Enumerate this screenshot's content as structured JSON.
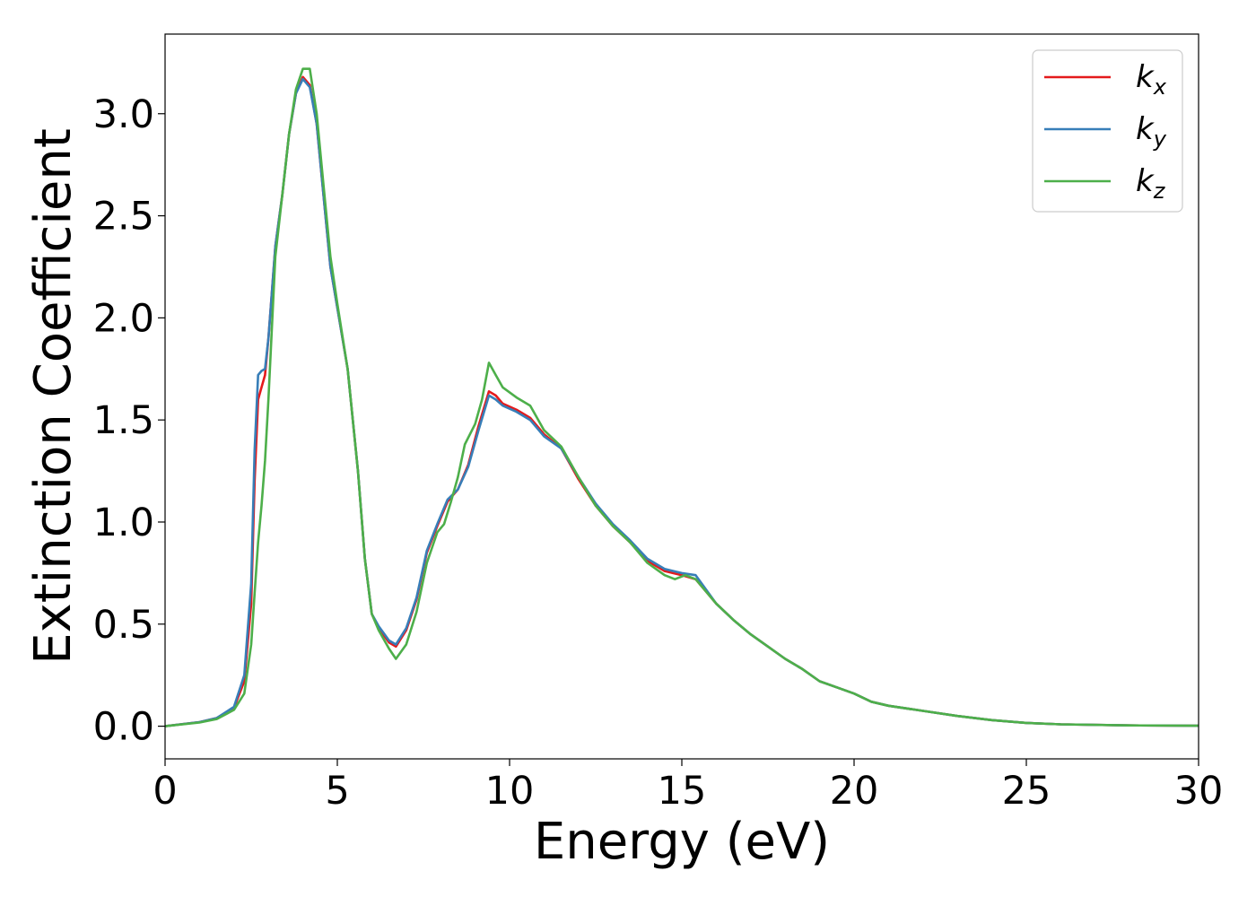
{
  "chart_data": {
    "type": "line",
    "xlabel": "Energy (eV)",
    "ylabel": "Extinction Coefficient",
    "xlim": [
      0,
      30
    ],
    "ylim": [
      -0.16,
      3.39
    ],
    "xticks": [
      0,
      5,
      10,
      15,
      20,
      25,
      30
    ],
    "xtick_labels": [
      "0",
      "5",
      "10",
      "15",
      "20",
      "25",
      "30"
    ],
    "yticks": [
      0.0,
      0.5,
      1.0,
      1.5,
      2.0,
      2.5,
      3.0
    ],
    "ytick_labels": [
      "0.0",
      "0.5",
      "1.0",
      "1.5",
      "2.0",
      "2.5",
      "3.0"
    ],
    "grid": false,
    "legend_position": "top-right",
    "series": [
      {
        "name": "k",
        "subscript": "x",
        "color": "#e41a1c",
        "points": [
          [
            0,
            0
          ],
          [
            1,
            0.02
          ],
          [
            1.5,
            0.04
          ],
          [
            2,
            0.09
          ],
          [
            2.3,
            0.22
          ],
          [
            2.5,
            0.6
          ],
          [
            2.6,
            1.2
          ],
          [
            2.7,
            1.6
          ],
          [
            2.8,
            1.66
          ],
          [
            2.9,
            1.72
          ],
          [
            3.0,
            1.9
          ],
          [
            3.2,
            2.35
          ],
          [
            3.4,
            2.6
          ],
          [
            3.6,
            2.9
          ],
          [
            3.8,
            3.1
          ],
          [
            4.0,
            3.18
          ],
          [
            4.2,
            3.14
          ],
          [
            4.4,
            2.95
          ],
          [
            4.6,
            2.6
          ],
          [
            4.8,
            2.25
          ],
          [
            5.0,
            2.05
          ],
          [
            5.3,
            1.75
          ],
          [
            5.6,
            1.25
          ],
          [
            5.8,
            0.82
          ],
          [
            6.0,
            0.55
          ],
          [
            6.2,
            0.48
          ],
          [
            6.5,
            0.41
          ],
          [
            6.7,
            0.39
          ],
          [
            7.0,
            0.47
          ],
          [
            7.3,
            0.62
          ],
          [
            7.6,
            0.85
          ],
          [
            7.9,
            0.98
          ],
          [
            8.2,
            1.1
          ],
          [
            8.5,
            1.16
          ],
          [
            8.8,
            1.28
          ],
          [
            9.1,
            1.47
          ],
          [
            9.4,
            1.64
          ],
          [
            9.6,
            1.62
          ],
          [
            9.8,
            1.58
          ],
          [
            10.2,
            1.55
          ],
          [
            10.6,
            1.51
          ],
          [
            11.0,
            1.43
          ],
          [
            11.5,
            1.36
          ],
          [
            12.0,
            1.21
          ],
          [
            12.5,
            1.08
          ],
          [
            13.0,
            0.98
          ],
          [
            13.5,
            0.9
          ],
          [
            14.0,
            0.81
          ],
          [
            14.5,
            0.76
          ],
          [
            15.0,
            0.74
          ],
          [
            15.4,
            0.72
          ],
          [
            16.0,
            0.6
          ],
          [
            16.5,
            0.52
          ],
          [
            17.0,
            0.45
          ],
          [
            17.5,
            0.39
          ],
          [
            18.0,
            0.33
          ],
          [
            18.5,
            0.28
          ],
          [
            19.0,
            0.22
          ],
          [
            19.5,
            0.19
          ],
          [
            20.0,
            0.16
          ],
          [
            20.5,
            0.12
          ],
          [
            21.0,
            0.1
          ],
          [
            22,
            0.075
          ],
          [
            23,
            0.05
          ],
          [
            24,
            0.03
          ],
          [
            25,
            0.016
          ],
          [
            26,
            0.009
          ],
          [
            28,
            0.004
          ],
          [
            30,
            0.002
          ]
        ]
      },
      {
        "name": "k",
        "subscript": "y",
        "color": "#377eb8",
        "points": [
          [
            0,
            0
          ],
          [
            1,
            0.02
          ],
          [
            1.5,
            0.04
          ],
          [
            2,
            0.095
          ],
          [
            2.3,
            0.25
          ],
          [
            2.5,
            0.7
          ],
          [
            2.6,
            1.35
          ],
          [
            2.7,
            1.72
          ],
          [
            2.8,
            1.74
          ],
          [
            2.9,
            1.75
          ],
          [
            3.0,
            1.9
          ],
          [
            3.2,
            2.35
          ],
          [
            3.4,
            2.6
          ],
          [
            3.6,
            2.9
          ],
          [
            3.8,
            3.1
          ],
          [
            4.0,
            3.17
          ],
          [
            4.2,
            3.13
          ],
          [
            4.4,
            2.95
          ],
          [
            4.6,
            2.6
          ],
          [
            4.8,
            2.25
          ],
          [
            5.0,
            2.05
          ],
          [
            5.3,
            1.75
          ],
          [
            5.6,
            1.25
          ],
          [
            5.8,
            0.82
          ],
          [
            6.0,
            0.55
          ],
          [
            6.2,
            0.49
          ],
          [
            6.5,
            0.42
          ],
          [
            6.7,
            0.4
          ],
          [
            7.0,
            0.48
          ],
          [
            7.3,
            0.63
          ],
          [
            7.6,
            0.86
          ],
          [
            7.9,
            0.99
          ],
          [
            8.2,
            1.11
          ],
          [
            8.5,
            1.16
          ],
          [
            8.8,
            1.27
          ],
          [
            9.1,
            1.45
          ],
          [
            9.4,
            1.62
          ],
          [
            9.6,
            1.6
          ],
          [
            9.8,
            1.57
          ],
          [
            10.2,
            1.54
          ],
          [
            10.6,
            1.5
          ],
          [
            11.0,
            1.42
          ],
          [
            11.5,
            1.36
          ],
          [
            12.0,
            1.22
          ],
          [
            12.5,
            1.09
          ],
          [
            13.0,
            0.99
          ],
          [
            13.5,
            0.91
          ],
          [
            14.0,
            0.82
          ],
          [
            14.5,
            0.77
          ],
          [
            15.0,
            0.75
          ],
          [
            15.4,
            0.74
          ],
          [
            16.0,
            0.6
          ],
          [
            16.5,
            0.52
          ],
          [
            17.0,
            0.45
          ],
          [
            17.5,
            0.39
          ],
          [
            18.0,
            0.33
          ],
          [
            18.5,
            0.28
          ],
          [
            19.0,
            0.22
          ],
          [
            19.5,
            0.19
          ],
          [
            20.0,
            0.16
          ],
          [
            20.5,
            0.12
          ],
          [
            21.0,
            0.1
          ],
          [
            22,
            0.075
          ],
          [
            23,
            0.05
          ],
          [
            24,
            0.03
          ],
          [
            25,
            0.016
          ],
          [
            26,
            0.009
          ],
          [
            28,
            0.004
          ],
          [
            30,
            0.002
          ]
        ]
      },
      {
        "name": "k",
        "subscript": "z",
        "color": "#4daf4a",
        "points": [
          [
            0,
            0
          ],
          [
            1,
            0.018
          ],
          [
            1.5,
            0.035
          ],
          [
            2,
            0.08
          ],
          [
            2.3,
            0.16
          ],
          [
            2.5,
            0.4
          ],
          [
            2.6,
            0.65
          ],
          [
            2.7,
            0.9
          ],
          [
            2.8,
            1.08
          ],
          [
            2.9,
            1.3
          ],
          [
            3.0,
            1.6
          ],
          [
            3.2,
            2.3
          ],
          [
            3.4,
            2.6
          ],
          [
            3.6,
            2.9
          ],
          [
            3.8,
            3.12
          ],
          [
            4.0,
            3.22
          ],
          [
            4.2,
            3.22
          ],
          [
            4.4,
            3.0
          ],
          [
            4.6,
            2.65
          ],
          [
            4.8,
            2.3
          ],
          [
            5.0,
            2.07
          ],
          [
            5.3,
            1.75
          ],
          [
            5.6,
            1.25
          ],
          [
            5.8,
            0.82
          ],
          [
            6.0,
            0.55
          ],
          [
            6.2,
            0.47
          ],
          [
            6.5,
            0.38
          ],
          [
            6.7,
            0.33
          ],
          [
            7.0,
            0.4
          ],
          [
            7.3,
            0.56
          ],
          [
            7.6,
            0.8
          ],
          [
            7.9,
            0.95
          ],
          [
            8.1,
            0.99
          ],
          [
            8.3,
            1.1
          ],
          [
            8.5,
            1.22
          ],
          [
            8.7,
            1.38
          ],
          [
            9.0,
            1.48
          ],
          [
            9.2,
            1.6
          ],
          [
            9.4,
            1.78
          ],
          [
            9.6,
            1.72
          ],
          [
            9.8,
            1.66
          ],
          [
            10.2,
            1.61
          ],
          [
            10.6,
            1.57
          ],
          [
            11.0,
            1.45
          ],
          [
            11.5,
            1.37
          ],
          [
            12.0,
            1.22
          ],
          [
            12.5,
            1.08
          ],
          [
            13.0,
            0.98
          ],
          [
            13.5,
            0.9
          ],
          [
            14.0,
            0.8
          ],
          [
            14.5,
            0.74
          ],
          [
            14.8,
            0.72
          ],
          [
            15.1,
            0.74
          ],
          [
            15.4,
            0.72
          ],
          [
            16.0,
            0.6
          ],
          [
            16.5,
            0.52
          ],
          [
            17.0,
            0.45
          ],
          [
            17.5,
            0.39
          ],
          [
            18.0,
            0.33
          ],
          [
            18.5,
            0.28
          ],
          [
            19.0,
            0.22
          ],
          [
            19.5,
            0.19
          ],
          [
            20.0,
            0.16
          ],
          [
            20.5,
            0.12
          ],
          [
            21.0,
            0.1
          ],
          [
            22,
            0.075
          ],
          [
            23,
            0.05
          ],
          [
            24,
            0.03
          ],
          [
            25,
            0.016
          ],
          [
            26,
            0.009
          ],
          [
            28,
            0.004
          ],
          [
            30,
            0.002
          ]
        ]
      }
    ]
  }
}
